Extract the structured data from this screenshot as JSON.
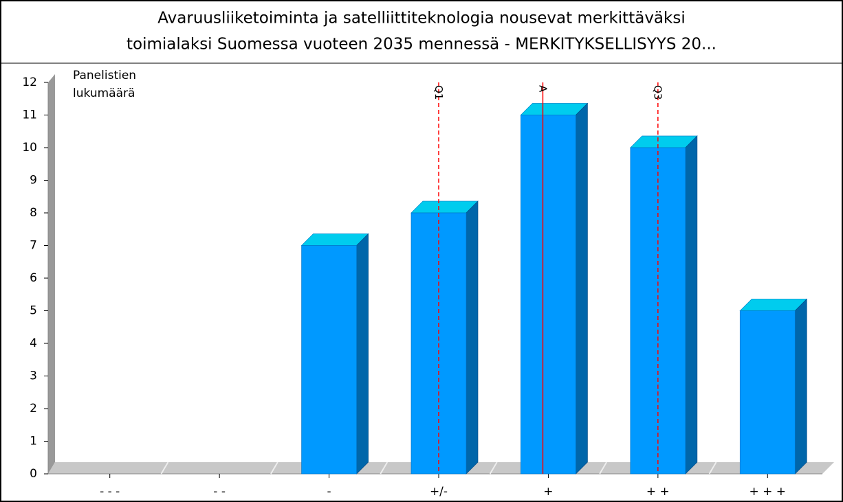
{
  "chart_data": {
    "type": "bar3d",
    "title": [
      "Avaruusliiketoiminta ja satelliittiteknologia nousevat merkittäväksi",
      "toimialaksi Suomessa vuoteen 2035 mennessä - MERKITYKSELLISYYS 20..."
    ],
    "y_label": [
      "Panelistien",
      "lukumäärä"
    ],
    "categories": [
      "- - -",
      "- -",
      "-",
      "+/-",
      "+",
      "+ +",
      "+ + +"
    ],
    "values": [
      0,
      0,
      7,
      8,
      11,
      10,
      5
    ],
    "color": "#0099ff",
    "ylim": [
      0,
      12
    ],
    "yticks": [
      0,
      1,
      2,
      3,
      4,
      5,
      6,
      7,
      8,
      9,
      10,
      11,
      12
    ],
    "markers": [
      {
        "label": "Q1",
        "x": 3,
        "style": "dashed"
      },
      {
        "label": "A",
        "x": 3.95,
        "style": "solid"
      },
      {
        "label": "Q3",
        "x": 5,
        "style": "dashed"
      }
    ],
    "marker_color": "#ff0000"
  }
}
